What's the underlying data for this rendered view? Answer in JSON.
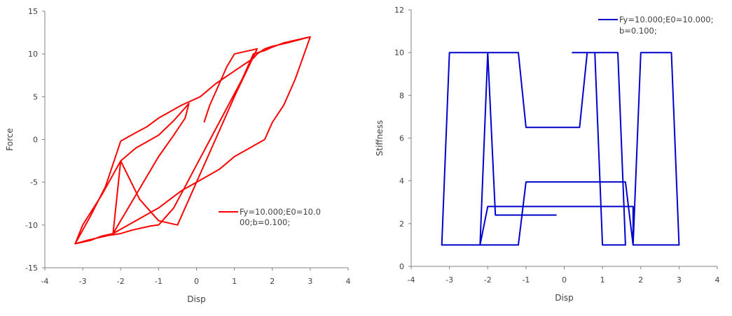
{
  "chart_data": [
    {
      "type": "line",
      "xlabel": "Disp",
      "ylabel": "Force",
      "xlim": [
        -4,
        4
      ],
      "ylim": [
        -15,
        15
      ],
      "xticks": [
        -4,
        -3,
        -2,
        -1,
        0,
        1,
        2,
        3,
        4
      ],
      "yticks": [
        -15,
        -10,
        -5,
        0,
        5,
        10,
        15
      ],
      "grid": false,
      "legend_position": "right-middle",
      "series": [
        {
          "name": "Fy=10.000;E0=10.000;b=0.100;",
          "legend_lines": [
            "Fy=10.000;E0=10.0",
            "00;b=0.100;"
          ],
          "color": "#ff0000",
          "x": [
            0.2,
            0.35,
            0.6,
            0.8,
            1.0,
            1.2,
            1.4,
            1.6,
            1.0,
            0.5,
            0.0,
            -0.5,
            -1.0,
            -1.5,
            -2.0,
            -2.2,
            -1.8,
            -1.4,
            -1.0,
            -0.6,
            -0.3,
            -0.2,
            -0.6,
            -1.0,
            -1.6,
            -2.0,
            -2.5,
            -3.0,
            -3.2,
            -2.9,
            -2.6,
            -2.3,
            -2.0,
            -1.7,
            -1.4,
            -1.2,
            -1.0,
            -0.6,
            -0.3,
            0.0,
            0.3,
            0.6,
            0.9,
            1.2,
            1.5,
            1.8,
            2.0,
            2.3,
            2.6,
            3.0,
            2.6,
            2.3,
            2.0,
            1.8,
            1.4,
            1.0,
            0.6,
            0.2,
            -0.4,
            -1.0,
            -1.6,
            -2.0,
            -2.2,
            -2.5,
            -2.8,
            -3.0,
            -3.2,
            -2.8,
            -2.4,
            -2.0,
            -1.8,
            -1.6,
            -1.3,
            -1.0,
            -0.6,
            -0.4,
            0.1,
            0.5,
            1.0,
            1.5,
            1.6,
            1.8,
            2.0,
            2.4,
            3.0
          ],
          "y": [
            2.0,
            4.0,
            6.5,
            8.5,
            10.0,
            10.2,
            10.4,
            10.6,
            5.0,
            0.0,
            -5.0,
            -10.0,
            -9.5,
            -7.0,
            -2.5,
            -11.0,
            -8.0,
            -5.0,
            -2.0,
            0.5,
            2.5,
            4.2,
            2.2,
            0.5,
            -1.0,
            -2.5,
            -6.5,
            -10.0,
            -12.2,
            -11.8,
            -11.5,
            -11.2,
            -11.0,
            -10.6,
            -10.3,
            -10.1,
            -10.0,
            -8.0,
            -5.5,
            -3.0,
            -0.5,
            2.0,
            4.5,
            7.0,
            10.0,
            10.4,
            10.8,
            11.3,
            11.6,
            12.0,
            7.0,
            4.0,
            2.0,
            0.0,
            -1.0,
            -2.0,
            -3.5,
            -4.5,
            -6.0,
            -8.0,
            -9.5,
            -10.5,
            -11.0,
            -11.3,
            -11.8,
            -12.0,
            -12.2,
            -9.0,
            -5.5,
            -0.2,
            0.3,
            0.8,
            1.5,
            2.5,
            3.5,
            4.0,
            5.0,
            6.5,
            8.0,
            9.5,
            10.0,
            10.6,
            10.9,
            11.3,
            12.0
          ]
        }
      ]
    },
    {
      "type": "line",
      "xlabel": "Disp",
      "ylabel": "Stiffness",
      "xlim": [
        -4,
        4
      ],
      "ylim": [
        0,
        12
      ],
      "xticks": [
        -4,
        -3,
        -2,
        -1,
        0,
        1,
        2,
        3,
        4
      ],
      "yticks": [
        0,
        2,
        4,
        6,
        8,
        10,
        12
      ],
      "grid": false,
      "legend_position": "top-right",
      "series": [
        {
          "name": "Fy=10.000;E0=10.000;b=0.100;",
          "legend_lines": [
            "Fy=10.000;E0=10.000;",
            "b=0.100;"
          ],
          "color": "#0000cc",
          "x": [
            0.2,
            0.6,
            0.8,
            0.8,
            1.4,
            1.6,
            1.6,
            1.0,
            1.0,
            0.8,
            0.6,
            0.4,
            0.4,
            -1.0,
            -1.0,
            -1.2,
            -1.2,
            -2.0,
            -2.0,
            -2.2,
            -2.2,
            -3.0,
            -3.0,
            -3.2,
            -3.2,
            -2.0,
            -2.0,
            -1.2,
            -1.2,
            -1.0,
            -1.0,
            1.6,
            1.8,
            2.0,
            2.0,
            2.8,
            3.0,
            3.0,
            1.8,
            1.8,
            -2.0,
            -2.0,
            -2.2,
            -2.0,
            -1.8,
            -1.8,
            -0.2
          ],
          "y": [
            10.0,
            10.0,
            10.0,
            10.0,
            10.0,
            1.0,
            1.0,
            1.0,
            1.0,
            10.0,
            10.0,
            6.5,
            6.5,
            6.5,
            6.5,
            10.0,
            10.0,
            10.0,
            10.0,
            10.0,
            10.0,
            10.0,
            10.0,
            1.0,
            1.0,
            1.0,
            1.0,
            1.0,
            1.0,
            3.95,
            3.95,
            3.95,
            1.0,
            10.0,
            10.0,
            10.0,
            1.0,
            1.0,
            1.0,
            2.8,
            2.8,
            2.8,
            1.0,
            10.0,
            2.4,
            2.4,
            2.4
          ]
        }
      ]
    }
  ]
}
